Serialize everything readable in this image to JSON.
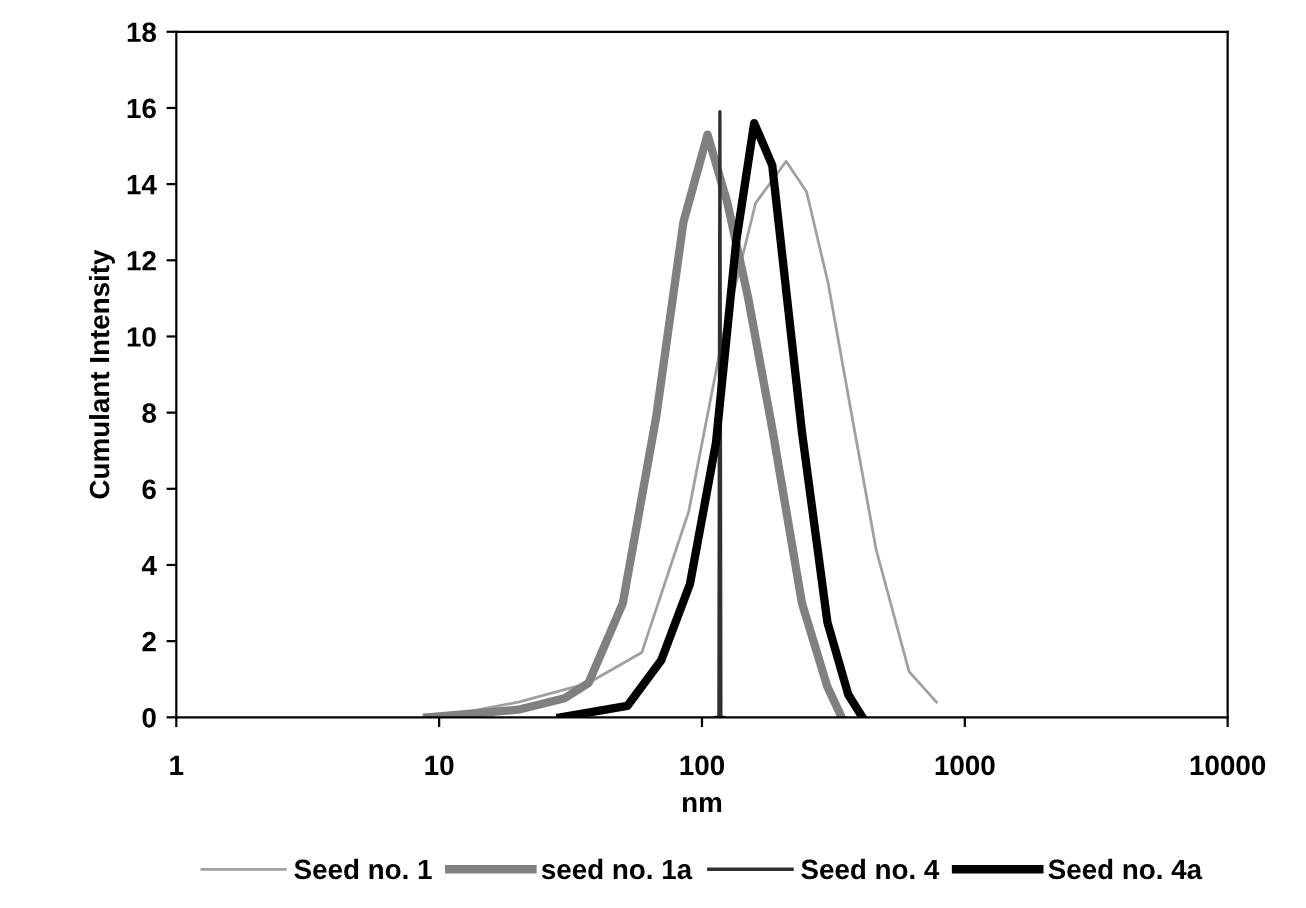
{
  "chart_data": {
    "type": "line",
    "xlabel": "nm",
    "ylabel": "Cumulant Intensity",
    "log": "x",
    "xlim": [
      1,
      10000
    ],
    "xticks": [
      1,
      10,
      100,
      1000,
      10000
    ],
    "ylim": [
      0,
      18
    ],
    "yticks": [
      0,
      2,
      4,
      6,
      8,
      10,
      12,
      14,
      16,
      18
    ],
    "grid": false,
    "legend": "bottom",
    "marker": "none",
    "line_style": "solid",
    "series": [
      {
        "name": "Seed no. 1",
        "color": "#a0a0a0",
        "x": [
          10,
          20,
          37,
          59,
          89,
          120,
          160,
          209,
          250,
          302,
          370,
          460,
          614,
          780
        ],
        "values": [
          0,
          0.4,
          0.9,
          1.7,
          5.4,
          10,
          13.5,
          14.6,
          13.8,
          11.4,
          8,
          4.4,
          1.2,
          0.4
        ]
      },
      {
        "name": "seed no. 1a",
        "color": "#808080",
        "x": [
          9,
          20,
          30,
          37,
          50,
          67,
          85,
          105,
          125,
          150,
          186,
          240,
          300,
          340
        ],
        "values": [
          0,
          0.2,
          0.5,
          0.9,
          3,
          7.9,
          13,
          15.3,
          13.5,
          11,
          7.5,
          3,
          0.8,
          0
        ]
      },
      {
        "name": "Seed no. 4",
        "color": "#303030",
        "x": [
          113,
          116,
          117,
          118,
          121
        ],
        "values": [
          0,
          0,
          15.9,
          0,
          0
        ]
      },
      {
        "name": "Seed no. 4a",
        "color": "#000000",
        "x": [
          29,
          52,
          70,
          90,
          113,
          135,
          158,
          185,
          240,
          300,
          360,
          408
        ],
        "values": [
          0,
          0.3,
          1.5,
          3.5,
          7.2,
          12.5,
          15.6,
          14.5,
          7.5,
          2.5,
          0.6,
          0
        ]
      }
    ]
  }
}
